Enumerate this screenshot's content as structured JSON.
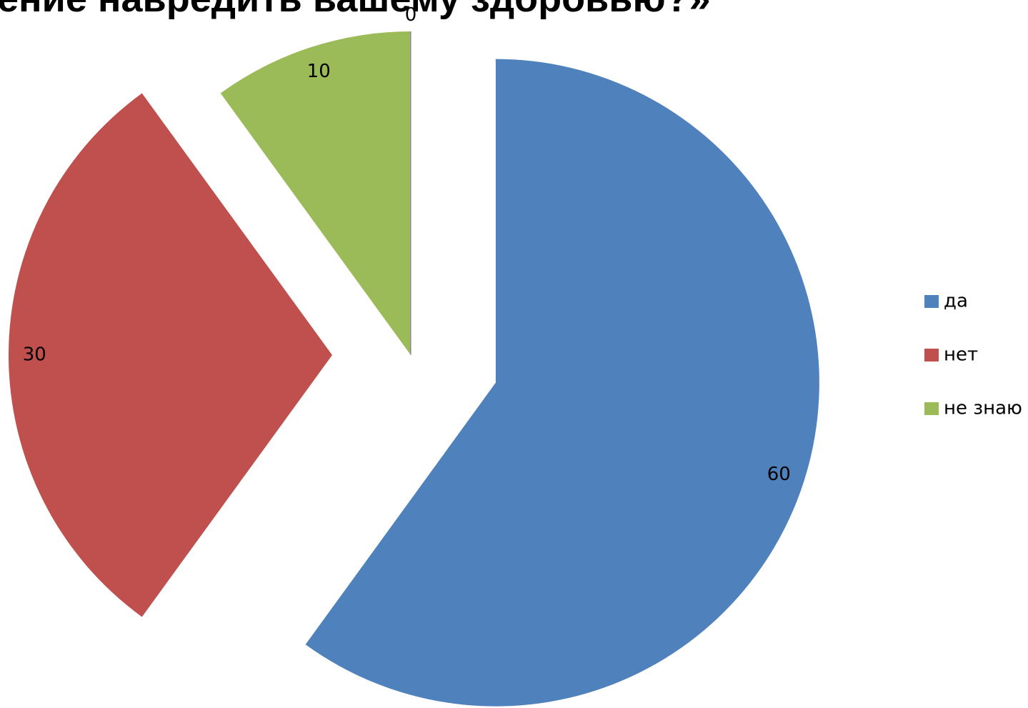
{
  "chart_data": {
    "type": "pie",
    "title": "ение навредить вашему здоровью?»",
    "categories": [
      "да",
      "нет",
      "не знаю",
      null
    ],
    "values": [
      60,
      30,
      10,
      0
    ],
    "colors": [
      "#4f81bd",
      "#c0504d",
      "#9bbb59",
      "#8064a2"
    ],
    "legend": "right"
  }
}
